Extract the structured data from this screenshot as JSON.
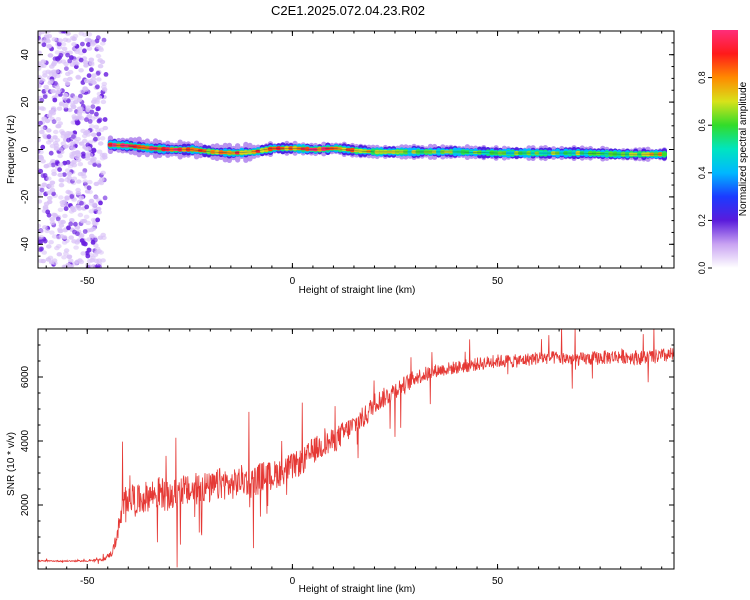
{
  "title": "C2E1.2025.072.04.23.R02",
  "colors": {
    "snr_line": "#e53935",
    "axis": "#000000",
    "spectro_points": "#7b2bd9",
    "colormap": [
      "#ffffff",
      "#c9a3f2",
      "#5a1bdc",
      "#1b3bff",
      "#00b8ff",
      "#00e5c0",
      "#32dc2a",
      "#d8e21a",
      "#ff8a00",
      "#ff1a1a",
      "#ff2d7a"
    ]
  },
  "chart_data": [
    {
      "type": "heatmap",
      "xlabel": "Height of straight line (km)",
      "ylabel": "Frequency (Hz)",
      "xlim": [
        -62,
        93
      ],
      "ylim": [
        -50,
        50
      ],
      "x_ticks": [
        "-50",
        "0",
        "50"
      ],
      "y_ticks": [
        "-40",
        "-20",
        "0",
        "20",
        "40"
      ],
      "colorbar": {
        "label": "Normalized spectral amplitude",
        "range": [
          0.0,
          1.0
        ],
        "ticks": [
          "0.0",
          "0.2",
          "0.4",
          "0.6",
          "0.8"
        ],
        "tick_values": [
          0.0,
          0.2,
          0.4,
          0.6,
          0.8
        ]
      },
      "noise_region": {
        "x_range": [
          -62,
          -45
        ],
        "y_range": [
          -50,
          50
        ],
        "amplitude": 0.1
      },
      "carrier_band": [
        {
          "x": -45,
          "freq": 2,
          "amp": 0.95
        },
        {
          "x": -40,
          "freq": 1.5,
          "amp": 0.9
        },
        {
          "x": -35,
          "freq": 0.5,
          "amp": 0.95
        },
        {
          "x": -30,
          "freq": 0,
          "amp": 0.9
        },
        {
          "x": -25,
          "freq": 0,
          "amp": 0.85
        },
        {
          "x": -20,
          "freq": -1,
          "amp": 0.75
        },
        {
          "x": -15,
          "freq": -1.5,
          "amp": 0.85
        },
        {
          "x": -10,
          "freq": -1,
          "amp": 0.8
        },
        {
          "x": -5,
          "freq": 0.5,
          "amp": 0.85
        },
        {
          "x": 0,
          "freq": 0.5,
          "amp": 0.85
        },
        {
          "x": 5,
          "freq": 0,
          "amp": 0.9
        },
        {
          "x": 10,
          "freq": 0.5,
          "amp": 0.85
        },
        {
          "x": 15,
          "freq": -0.5,
          "amp": 0.75
        },
        {
          "x": 20,
          "freq": -1,
          "amp": 0.65
        },
        {
          "x": 30,
          "freq": -1,
          "amp": 0.6
        },
        {
          "x": 40,
          "freq": -1,
          "amp": 0.55
        },
        {
          "x": 50,
          "freq": -1.5,
          "amp": 0.55
        },
        {
          "x": 60,
          "freq": -1.5,
          "amp": 0.55
        },
        {
          "x": 70,
          "freq": -1.5,
          "amp": 0.6
        },
        {
          "x": 80,
          "freq": -2,
          "amp": 0.65
        },
        {
          "x": 90,
          "freq": -2,
          "amp": 0.7
        }
      ]
    },
    {
      "type": "line",
      "xlabel": "Height of straight line (km)",
      "ylabel": "SNR (10 * v/v)",
      "xlim": [
        -62,
        93
      ],
      "ylim": [
        0,
        7500
      ],
      "x_ticks": [
        "-50",
        "0",
        "50"
      ],
      "y_ticks": [
        "2000",
        "4000",
        "6000"
      ],
      "series": [
        {
          "x": [
            -62,
            -55,
            -50,
            -46,
            -44,
            -43,
            -42,
            -41,
            -40,
            -38,
            -35,
            -32,
            -30,
            -27,
            -25,
            -22,
            -20,
            -17,
            -15,
            -12,
            -10,
            -7,
            -5,
            -2,
            0,
            3,
            5,
            8,
            10,
            12,
            15,
            18,
            20,
            23,
            25,
            28,
            30,
            33,
            35,
            40,
            45,
            50,
            55,
            60,
            65,
            70,
            75,
            80,
            85,
            90,
            93
          ],
          "values": [
            250,
            250,
            250,
            300,
            500,
            900,
            1500,
            2000,
            2400,
            2100,
            2300,
            2400,
            2200,
            2500,
            2400,
            2600,
            2500,
            2700,
            2600,
            2800,
            2700,
            2900,
            2900,
            3100,
            3200,
            3400,
            3700,
            3900,
            4000,
            4200,
            4500,
            4800,
            5200,
            5400,
            5600,
            5800,
            6000,
            6100,
            6200,
            6300,
            6400,
            6500,
            6500,
            6600,
            6600,
            6550,
            6600,
            6650,
            6600,
            6650,
            6700
          ],
          "noise_amplitude": [
            30,
            30,
            30,
            60,
            150,
            300,
            500,
            700,
            900,
            700,
            700,
            750,
            650,
            700,
            700,
            750,
            700,
            750,
            650,
            700,
            700,
            700,
            650,
            650,
            600,
            600,
            600,
            550,
            550,
            550,
            500,
            500,
            450,
            450,
            400,
            400,
            350,
            350,
            300,
            300,
            300,
            300,
            300,
            300,
            300,
            300,
            320,
            330,
            330,
            330,
            330
          ]
        }
      ]
    }
  ]
}
